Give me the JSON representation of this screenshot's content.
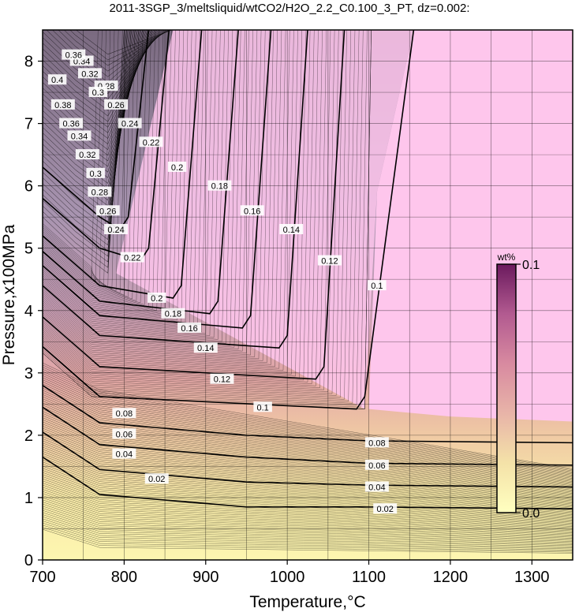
{
  "title": "2011-3SGP_3/meltsliquid/wtCO2/H2O_2.2_C0.100_3_PT, dz=0.002:",
  "chart_data": {
    "type": "heatmap",
    "title": "2011-3SGP_3/meltsliquid/wtCO2/H2O_2.2_C0.100_3_PT, dz=0.002:",
    "xlabel": "Temperature,°C",
    "ylabel": "Pressure,x100MPa",
    "xlim": [
      700,
      1350
    ],
    "ylim": [
      0,
      8.5
    ],
    "xticks": [
      "700",
      "800",
      "900",
      "1000",
      "1100",
      "1200",
      "1300"
    ],
    "yticks": [
      "0",
      "1",
      "2",
      "3",
      "4",
      "5",
      "6",
      "7",
      "8"
    ],
    "grid": true,
    "colorbar": {
      "unit": "wt%",
      "min_label": "0.0",
      "max_label": "0.1",
      "range": [
        0.0,
        0.1
      ],
      "colors": [
        "#ffffc0",
        "#f4e2a8",
        "#e8b4a8",
        "#d88aa0",
        "#b25a90",
        "#6b1a5e"
      ]
    },
    "background_colors": {
      "plateau": "#fec6ec",
      "low": "#fdf6a8",
      "mid": "#eab0a2"
    },
    "contour_levels": [
      0.02,
      0.04,
      0.06,
      0.08,
      0.1,
      0.12,
      0.14,
      0.16,
      0.18,
      0.2,
      0.22,
      0.24,
      0.26,
      0.28,
      0.3,
      0.32,
      0.34
    ],
    "contour_labels": [
      {
        "text": "0.02",
        "x": 840,
        "y": 1.3
      },
      {
        "text": "0.02",
        "x": 1120,
        "y": 0.82
      },
      {
        "text": "0.04",
        "x": 800,
        "y": 1.7
      },
      {
        "text": "0.04",
        "x": 1110,
        "y": 1.17
      },
      {
        "text": "0.06",
        "x": 800,
        "y": 2.02
      },
      {
        "text": "0.06",
        "x": 1110,
        "y": 1.52
      },
      {
        "text": "0.08",
        "x": 800,
        "y": 2.35
      },
      {
        "text": "0.08",
        "x": 1110,
        "y": 1.88
      },
      {
        "text": "0.1",
        "x": 970,
        "y": 2.45
      },
      {
        "text": "0.1",
        "x": 1110,
        "y": 4.4
      },
      {
        "text": "0.12",
        "x": 920,
        "y": 2.9
      },
      {
        "text": "0.12",
        "x": 1052,
        "y": 4.8
      },
      {
        "text": "0.14",
        "x": 900,
        "y": 3.4
      },
      {
        "text": "0.14",
        "x": 1005,
        "y": 5.3
      },
      {
        "text": "0.16",
        "x": 880,
        "y": 3.72
      },
      {
        "text": "0.16",
        "x": 957,
        "y": 5.6
      },
      {
        "text": "0.18",
        "x": 860,
        "y": 3.95
      },
      {
        "text": "0.18",
        "x": 917,
        "y": 6.0
      },
      {
        "text": "0.2",
        "x": 840,
        "y": 4.2
      },
      {
        "text": "0.2",
        "x": 865,
        "y": 6.3
      },
      {
        "text": "0.22",
        "x": 810,
        "y": 4.85
      },
      {
        "text": "0.22",
        "x": 833,
        "y": 6.7
      },
      {
        "text": "0.24",
        "x": 790,
        "y": 5.3
      },
      {
        "text": "0.24",
        "x": 807,
        "y": 7.0
      },
      {
        "text": "0.26",
        "x": 780,
        "y": 5.6
      },
      {
        "text": "0.26",
        "x": 790,
        "y": 7.3
      },
      {
        "text": "0.28",
        "x": 770,
        "y": 5.9
      },
      {
        "text": "0.28",
        "x": 778,
        "y": 7.6
      },
      {
        "text": "0.3",
        "x": 765,
        "y": 6.2
      },
      {
        "text": "0.3",
        "x": 768,
        "y": 7.5
      },
      {
        "text": "0.32",
        "x": 755,
        "y": 6.5
      },
      {
        "text": "0.32",
        "x": 758,
        "y": 7.8
      },
      {
        "text": "0.34",
        "x": 745,
        "y": 6.8
      },
      {
        "text": "0.34",
        "x": 748,
        "y": 8.0
      },
      {
        "text": "0.36",
        "x": 735,
        "y": 7.0
      },
      {
        "text": "0.36",
        "x": 738,
        "y": 8.1
      },
      {
        "text": "0.38",
        "x": 725,
        "y": 7.3
      },
      {
        "text": "0.4",
        "x": 718,
        "y": 7.7
      }
    ]
  }
}
